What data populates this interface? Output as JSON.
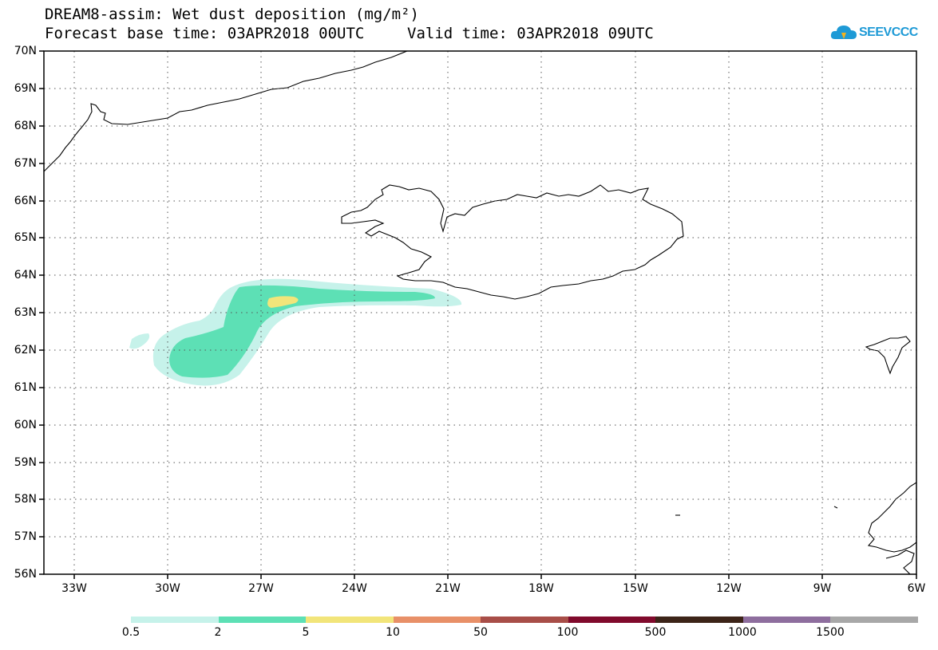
{
  "header": {
    "title": "DREAM8-assim: Wet dust deposition (mg/m²)",
    "base_time": "Forecast base time: 03APR2018 00UTC",
    "valid_time": "Valid time: 03APR2018 09UTC"
  },
  "logo": {
    "text": "SEEVCCC",
    "icon": "cloud-icon"
  },
  "map": {
    "lat_labels": [
      "70N",
      "69N",
      "68N",
      "67N",
      "66N",
      "65N",
      "64N",
      "63N",
      "62N",
      "61N",
      "60N",
      "59N",
      "58N",
      "57N",
      "56N"
    ],
    "lon_labels": [
      "33W",
      "30W",
      "27W",
      "24W",
      "21W",
      "18W",
      "15W",
      "12W",
      "9W",
      "6W"
    ],
    "lat_range": [
      56,
      70
    ],
    "lon_range": [
      -34.0,
      -6.0
    ],
    "grid": true,
    "land": [
      "Greenland coast",
      "Iceland",
      "Faroe Islands",
      "Scotland"
    ]
  },
  "legend": {
    "colors": [
      "#c6f2ea",
      "#5de0b5",
      "#f2e57a",
      "#e89068",
      "#a84e48",
      "#800a2c",
      "#3c2418",
      "#8e6e9e",
      "#a8a8a8"
    ],
    "labels": [
      "0.5",
      "2",
      "5",
      "10",
      "50",
      "100",
      "500",
      "1000",
      "1500"
    ]
  },
  "colors": {
    "frame": "#000000",
    "grid": "#555555"
  }
}
